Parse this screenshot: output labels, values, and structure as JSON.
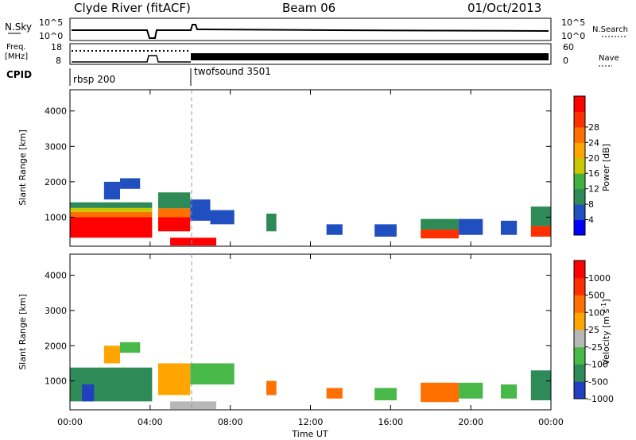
{
  "header": {
    "station": "Clyde River (fitACF)",
    "beam": "Beam 06",
    "date": "01/Oct/2013"
  },
  "strip_panels": {
    "nsky": {
      "label": "N.Sky",
      "ticks": [
        "10^5",
        "10^0"
      ]
    },
    "nsearch": {
      "label": "N.Search",
      "ticks": [
        "10^5",
        "10^0"
      ]
    },
    "freq": {
      "label_line1": "Freq.",
      "label_line2": "[MHz]",
      "ticks": [
        "18",
        "8"
      ]
    },
    "nave": {
      "label": "Nave",
      "ticks": [
        "60",
        "0"
      ]
    },
    "cpid": {
      "label": "CPID",
      "modes": [
        {
          "name": "rbsp 200",
          "start_hour": 0.0
        },
        {
          "name": "twofsound 3501",
          "start_hour": 6.0
        }
      ]
    }
  },
  "chart_data": [
    {
      "type": "heatmap",
      "name": "power",
      "ylabel": "Slant Range [km]",
      "xlabel": "",
      "xlim": [
        0,
        24
      ],
      "ylim": [
        180,
        4600
      ],
      "yticks": [
        1000,
        2000,
        3000,
        4000
      ],
      "colorbar": {
        "label": "Power [dB]",
        "ticks": [
          "4",
          "8",
          "12",
          "16",
          "20",
          "24",
          "28"
        ],
        "colors": [
          "#0000ff",
          "#2050c0",
          "#2e8b57",
          "#40b040",
          "#c8c800",
          "#ffa500",
          "#ff7000",
          "#ff3000",
          "#ff0000"
        ]
      },
      "regions": [
        {
          "t0": 0.0,
          "t1": 4.1,
          "r0": 420,
          "r1": 1000,
          "color": "#ff0000"
        },
        {
          "t0": 0.0,
          "t1": 4.1,
          "r0": 1000,
          "r1": 1150,
          "color": "#ff7000"
        },
        {
          "t0": 0.0,
          "t1": 4.1,
          "r0": 1150,
          "r1": 1260,
          "color": "#c8c800"
        },
        {
          "t0": 0.0,
          "t1": 4.1,
          "r0": 1260,
          "r1": 1420,
          "color": "#2e8b57"
        },
        {
          "t0": 4.4,
          "t1": 6.0,
          "r0": 600,
          "r1": 1000,
          "color": "#ff0000"
        },
        {
          "t0": 4.4,
          "t1": 6.0,
          "r0": 1000,
          "r1": 1250,
          "color": "#ff7000"
        },
        {
          "t0": 4.4,
          "t1": 6.0,
          "r0": 1250,
          "r1": 1700,
          "color": "#2e8b57"
        },
        {
          "t0": 5.0,
          "t1": 7.3,
          "r0": 200,
          "r1": 420,
          "color": "#ff0000"
        },
        {
          "t0": 6.0,
          "t1": 7.0,
          "r0": 900,
          "r1": 1500,
          "color": "#2050c0"
        },
        {
          "t0": 7.0,
          "t1": 8.2,
          "r0": 800,
          "r1": 1200,
          "color": "#2050c0"
        },
        {
          "t0": 9.8,
          "t1": 10.3,
          "r0": 600,
          "r1": 1100,
          "color": "#2e8b57"
        },
        {
          "t0": 12.8,
          "t1": 13.6,
          "r0": 500,
          "r1": 800,
          "color": "#2050c0"
        },
        {
          "t0": 15.2,
          "t1": 16.3,
          "r0": 450,
          "r1": 800,
          "color": "#2050c0"
        },
        {
          "t0": 17.5,
          "t1": 19.4,
          "r0": 400,
          "r1": 650,
          "color": "#ff3000"
        },
        {
          "t0": 17.5,
          "t1": 19.4,
          "r0": 650,
          "r1": 950,
          "color": "#2e8b57"
        },
        {
          "t0": 19.4,
          "t1": 20.6,
          "r0": 500,
          "r1": 950,
          "color": "#2050c0"
        },
        {
          "t0": 21.5,
          "t1": 22.3,
          "r0": 500,
          "r1": 900,
          "color": "#2050c0"
        },
        {
          "t0": 23.0,
          "t1": 24.0,
          "r0": 450,
          "r1": 750,
          "color": "#ff3000"
        },
        {
          "t0": 23.0,
          "t1": 24.0,
          "r0": 750,
          "r1": 1300,
          "color": "#2e8b57"
        },
        {
          "t0": 1.7,
          "t1": 2.5,
          "r0": 1500,
          "r1": 2000,
          "color": "#2050c0"
        },
        {
          "t0": 2.5,
          "t1": 3.5,
          "r0": 1800,
          "r1": 2100,
          "color": "#2050c0"
        }
      ]
    },
    {
      "type": "heatmap",
      "name": "velocity",
      "ylabel": "Slant Range [km]",
      "xlabel": "Time UT",
      "xlim": [
        0,
        24
      ],
      "ylim": [
        180,
        4600
      ],
      "xticks": [
        "00:00",
        "04:00",
        "08:00",
        "12:00",
        "16:00",
        "20:00",
        "00:00"
      ],
      "yticks": [
        1000,
        2000,
        3000,
        4000
      ],
      "colorbar": {
        "label": "Velocity [m s^-1]",
        "label_main": "Velocity [m s",
        "label_sup": "-1",
        "label_end": "]",
        "ticks": [
          "1000",
          "500",
          "100",
          "25",
          "-25",
          "-100",
          "-500",
          "-1000"
        ],
        "colors": [
          "#2040c0",
          "#2e8b57",
          "#48b848",
          "#b8b8b8",
          "#ffa500",
          "#ff7000",
          "#ff3000",
          "#ff0000"
        ]
      },
      "regions": [
        {
          "t0": 0.0,
          "t1": 4.1,
          "r0": 420,
          "r1": 1380,
          "color": "#2e8b57"
        },
        {
          "t0": 0.6,
          "t1": 1.2,
          "r0": 420,
          "r1": 900,
          "color": "#2040c0"
        },
        {
          "t0": 4.4,
          "t1": 6.0,
          "r0": 600,
          "r1": 1500,
          "color": "#ffa500"
        },
        {
          "t0": 5.0,
          "t1": 7.3,
          "r0": 200,
          "r1": 420,
          "color": "#b8b8b8"
        },
        {
          "t0": 6.0,
          "t1": 8.2,
          "r0": 900,
          "r1": 1500,
          "color": "#48b848"
        },
        {
          "t0": 9.8,
          "t1": 10.3,
          "r0": 600,
          "r1": 1000,
          "color": "#ff7000"
        },
        {
          "t0": 12.8,
          "t1": 13.6,
          "r0": 500,
          "r1": 800,
          "color": "#ff7000"
        },
        {
          "t0": 15.2,
          "t1": 16.3,
          "r0": 450,
          "r1": 800,
          "color": "#48b848"
        },
        {
          "t0": 17.5,
          "t1": 19.4,
          "r0": 400,
          "r1": 950,
          "color": "#ff7000"
        },
        {
          "t0": 19.4,
          "t1": 20.6,
          "r0": 500,
          "r1": 950,
          "color": "#48b848"
        },
        {
          "t0": 21.5,
          "t1": 22.3,
          "r0": 500,
          "r1": 900,
          "color": "#48b848"
        },
        {
          "t0": 23.0,
          "t1": 24.0,
          "r0": 450,
          "r1": 1300,
          "color": "#2e8b57"
        },
        {
          "t0": 1.7,
          "t1": 2.5,
          "r0": 1500,
          "r1": 2000,
          "color": "#ffa500"
        },
        {
          "t0": 2.5,
          "t1": 3.5,
          "r0": 1800,
          "r1": 2100,
          "color": "#48b848"
        }
      ]
    }
  ]
}
